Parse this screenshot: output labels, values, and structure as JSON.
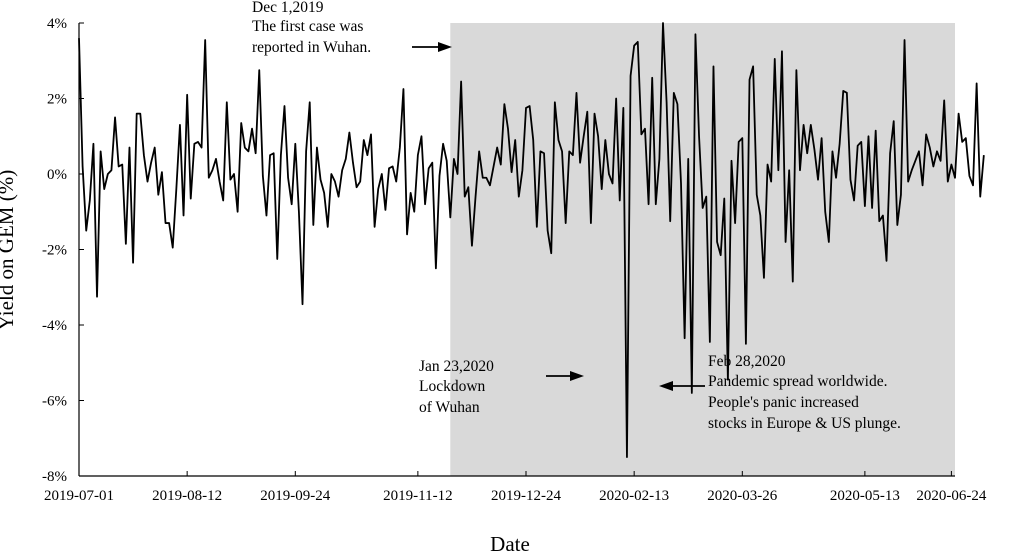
{
  "chart_data": {
    "type": "line",
    "xlabel": "Date",
    "ylabel": "Yield on GEM (%)",
    "ylim": [
      -8,
      4
    ],
    "y_ticks": [
      4,
      2,
      0,
      -2,
      -4,
      -6,
      -8
    ],
    "y_tick_labels": [
      "4%",
      "2%",
      "0%",
      "-2%",
      "-4%",
      "-6%",
      "-8%"
    ],
    "x_tick_labels": [
      "2019-07-01",
      "2019-08-12",
      "2019-09-24",
      "2019-11-12",
      "2019-12-24",
      "2020-02-13",
      "2020-03-26",
      "2020-05-13",
      "2020-06-24"
    ],
    "x_tick_index": [
      0,
      30,
      60,
      94,
      124,
      154,
      184,
      218,
      242
    ],
    "n_points": 244,
    "shaded_start_index": 103,
    "grid": false,
    "legend": "none",
    "series": [
      {
        "color": "#000000",
        "values": [
          3.6,
          0.2,
          -1.5,
          -0.7,
          0.8,
          -3.25,
          0.6,
          -0.4,
          0.0,
          0.1,
          1.5,
          0.2,
          0.25,
          -1.85,
          0.7,
          -2.35,
          1.6,
          1.6,
          0.5,
          -0.2,
          0.3,
          0.7,
          -0.55,
          0.05,
          -1.3,
          -1.3,
          -1.95,
          -0.4,
          1.3,
          -1.1,
          2.1,
          -0.65,
          0.8,
          0.85,
          0.7,
          3.55,
          -0.1,
          0.1,
          0.4,
          -0.2,
          -0.7,
          1.9,
          -0.15,
          0.0,
          -1.0,
          1.35,
          0.7,
          0.6,
          1.2,
          0.55,
          2.75,
          -0.05,
          -1.1,
          0.5,
          0.55,
          -2.25,
          0.5,
          1.8,
          -0.1,
          -0.8,
          0.8,
          -1.0,
          -3.45,
          0.6,
          1.9,
          -1.35,
          0.7,
          -0.15,
          -0.5,
          -1.4,
          0.0,
          -0.2,
          -0.6,
          0.1,
          0.4,
          1.1,
          0.3,
          -0.35,
          -0.2,
          0.9,
          0.5,
          1.05,
          -1.4,
          -0.4,
          0.0,
          -0.95,
          0.15,
          0.2,
          -0.2,
          0.7,
          2.25,
          -1.6,
          -0.5,
          -1.0,
          0.5,
          1.0,
          -0.8,
          0.15,
          0.3,
          -2.5,
          -0.05,
          0.8,
          0.35,
          -1.15,
          0.4,
          0.0,
          2.45,
          -0.6,
          -0.35,
          -1.9,
          -0.6,
          0.6,
          -0.1,
          -0.1,
          -0.3,
          0.2,
          0.7,
          0.25,
          1.85,
          1.2,
          0.05,
          0.9,
          -0.6,
          0.1,
          1.75,
          1.8,
          0.9,
          -1.4,
          0.6,
          0.55,
          -1.5,
          -2.1,
          1.9,
          0.9,
          0.6,
          -1.3,
          0.6,
          0.5,
          2.15,
          0.3,
          1.0,
          1.65,
          -1.3,
          1.6,
          1.0,
          -0.4,
          0.9,
          0.0,
          -0.25,
          2.0,
          -0.7,
          1.75,
          -7.5,
          2.6,
          3.4,
          3.5,
          1.05,
          1.2,
          -0.8,
          2.55,
          -0.8,
          0.4,
          4.0,
          1.9,
          -1.25,
          2.15,
          1.85,
          -0.25,
          -4.35,
          0.4,
          -5.8,
          3.7,
          1.0,
          -0.9,
          -0.6,
          -4.45,
          2.85,
          -1.8,
          -2.15,
          -0.65,
          -5.45,
          0.35,
          -1.3,
          0.85,
          0.95,
          -4.5,
          2.5,
          2.85,
          -0.55,
          -1.1,
          -2.75,
          0.25,
          -0.2,
          3.05,
          0.1,
          3.25,
          -1.8,
          0.1,
          -2.85,
          2.75,
          0.1,
          1.3,
          0.55,
          1.3,
          0.65,
          -0.15,
          0.95,
          -1.0,
          -1.8,
          0.6,
          -0.1,
          0.8,
          2.2,
          2.15,
          -0.15,
          -0.7,
          0.75,
          0.85,
          -0.85,
          1.0,
          -0.9,
          1.15,
          -1.25,
          -1.1,
          -2.3,
          0.55,
          1.4,
          -1.35,
          -0.55,
          3.55,
          -0.2,
          0.1,
          0.35,
          0.6,
          -0.3,
          1.05,
          0.7,
          0.2,
          0.6,
          0.35,
          1.95,
          -0.2,
          0.25,
          -0.1,
          1.6,
          0.85,
          0.95,
          -0.05,
          -0.3,
          2.4,
          -0.6,
          0.5
        ]
      }
    ],
    "annotations": [
      {
        "lines": [
          "Dec 1,2019",
          "The first case was",
          "reported in Wuhan."
        ]
      },
      {
        "lines": [
          "Jan 23,2020",
          "Lockdown",
          "of Wuhan"
        ]
      },
      {
        "lines": [
          "Feb 28,2020",
          "Pandemic spread worldwide.",
          "People's panic increased",
          "stocks in Europe & US plunge."
        ]
      }
    ]
  }
}
